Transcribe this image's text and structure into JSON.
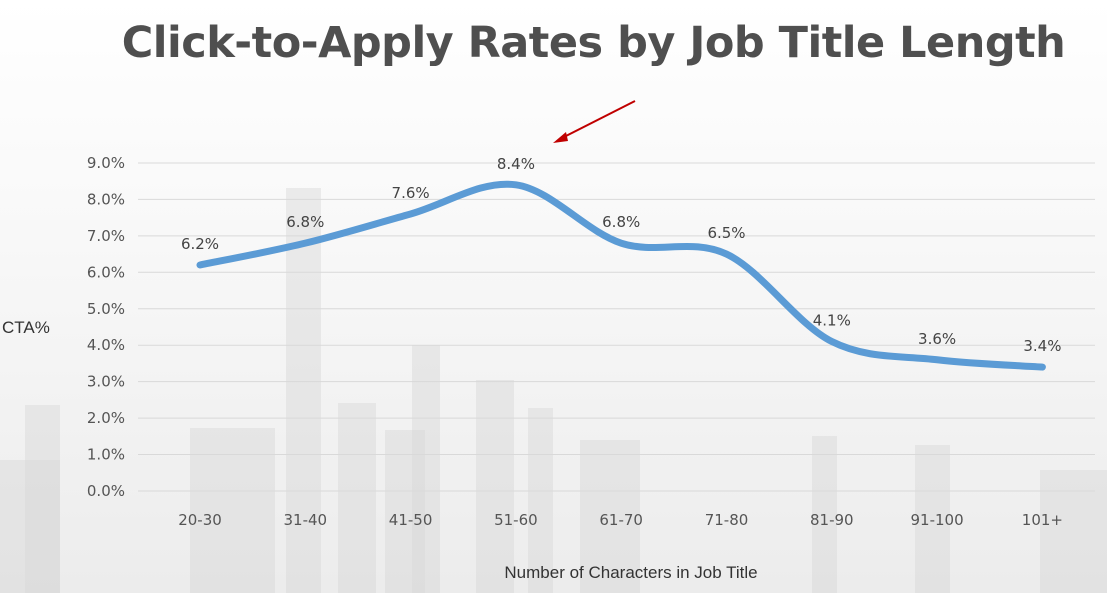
{
  "chart_data": {
    "type": "line",
    "title": "Click-to-Apply Rates by Job Title Length",
    "xlabel": "Number of Characters in Job Title",
    "ylabel": "CTA%",
    "categories": [
      "20-30",
      "31-40",
      "41-50",
      "51-60",
      "61-70",
      "71-80",
      "81-90",
      "91-100",
      "101+"
    ],
    "values": [
      6.2,
      6.8,
      7.6,
      8.4,
      6.8,
      6.5,
      4.1,
      3.6,
      3.4
    ],
    "data_labels": [
      "6.2%",
      "6.8%",
      "7.6%",
      "8.4%",
      "6.8%",
      "6.5%",
      "4.1%",
      "3.6%",
      "3.4%"
    ],
    "ylim": [
      0,
      9
    ],
    "yticks": [
      "0.0%",
      "1.0%",
      "2.0%",
      "3.0%",
      "4.0%",
      "5.0%",
      "6.0%",
      "7.0%",
      "8.0%",
      "9.0%"
    ],
    "grid": true,
    "smooth": true,
    "line_color": "#5b9bd5",
    "annotation_arrow_color": "#c00000",
    "annotation_arrow_target": "51-60"
  }
}
